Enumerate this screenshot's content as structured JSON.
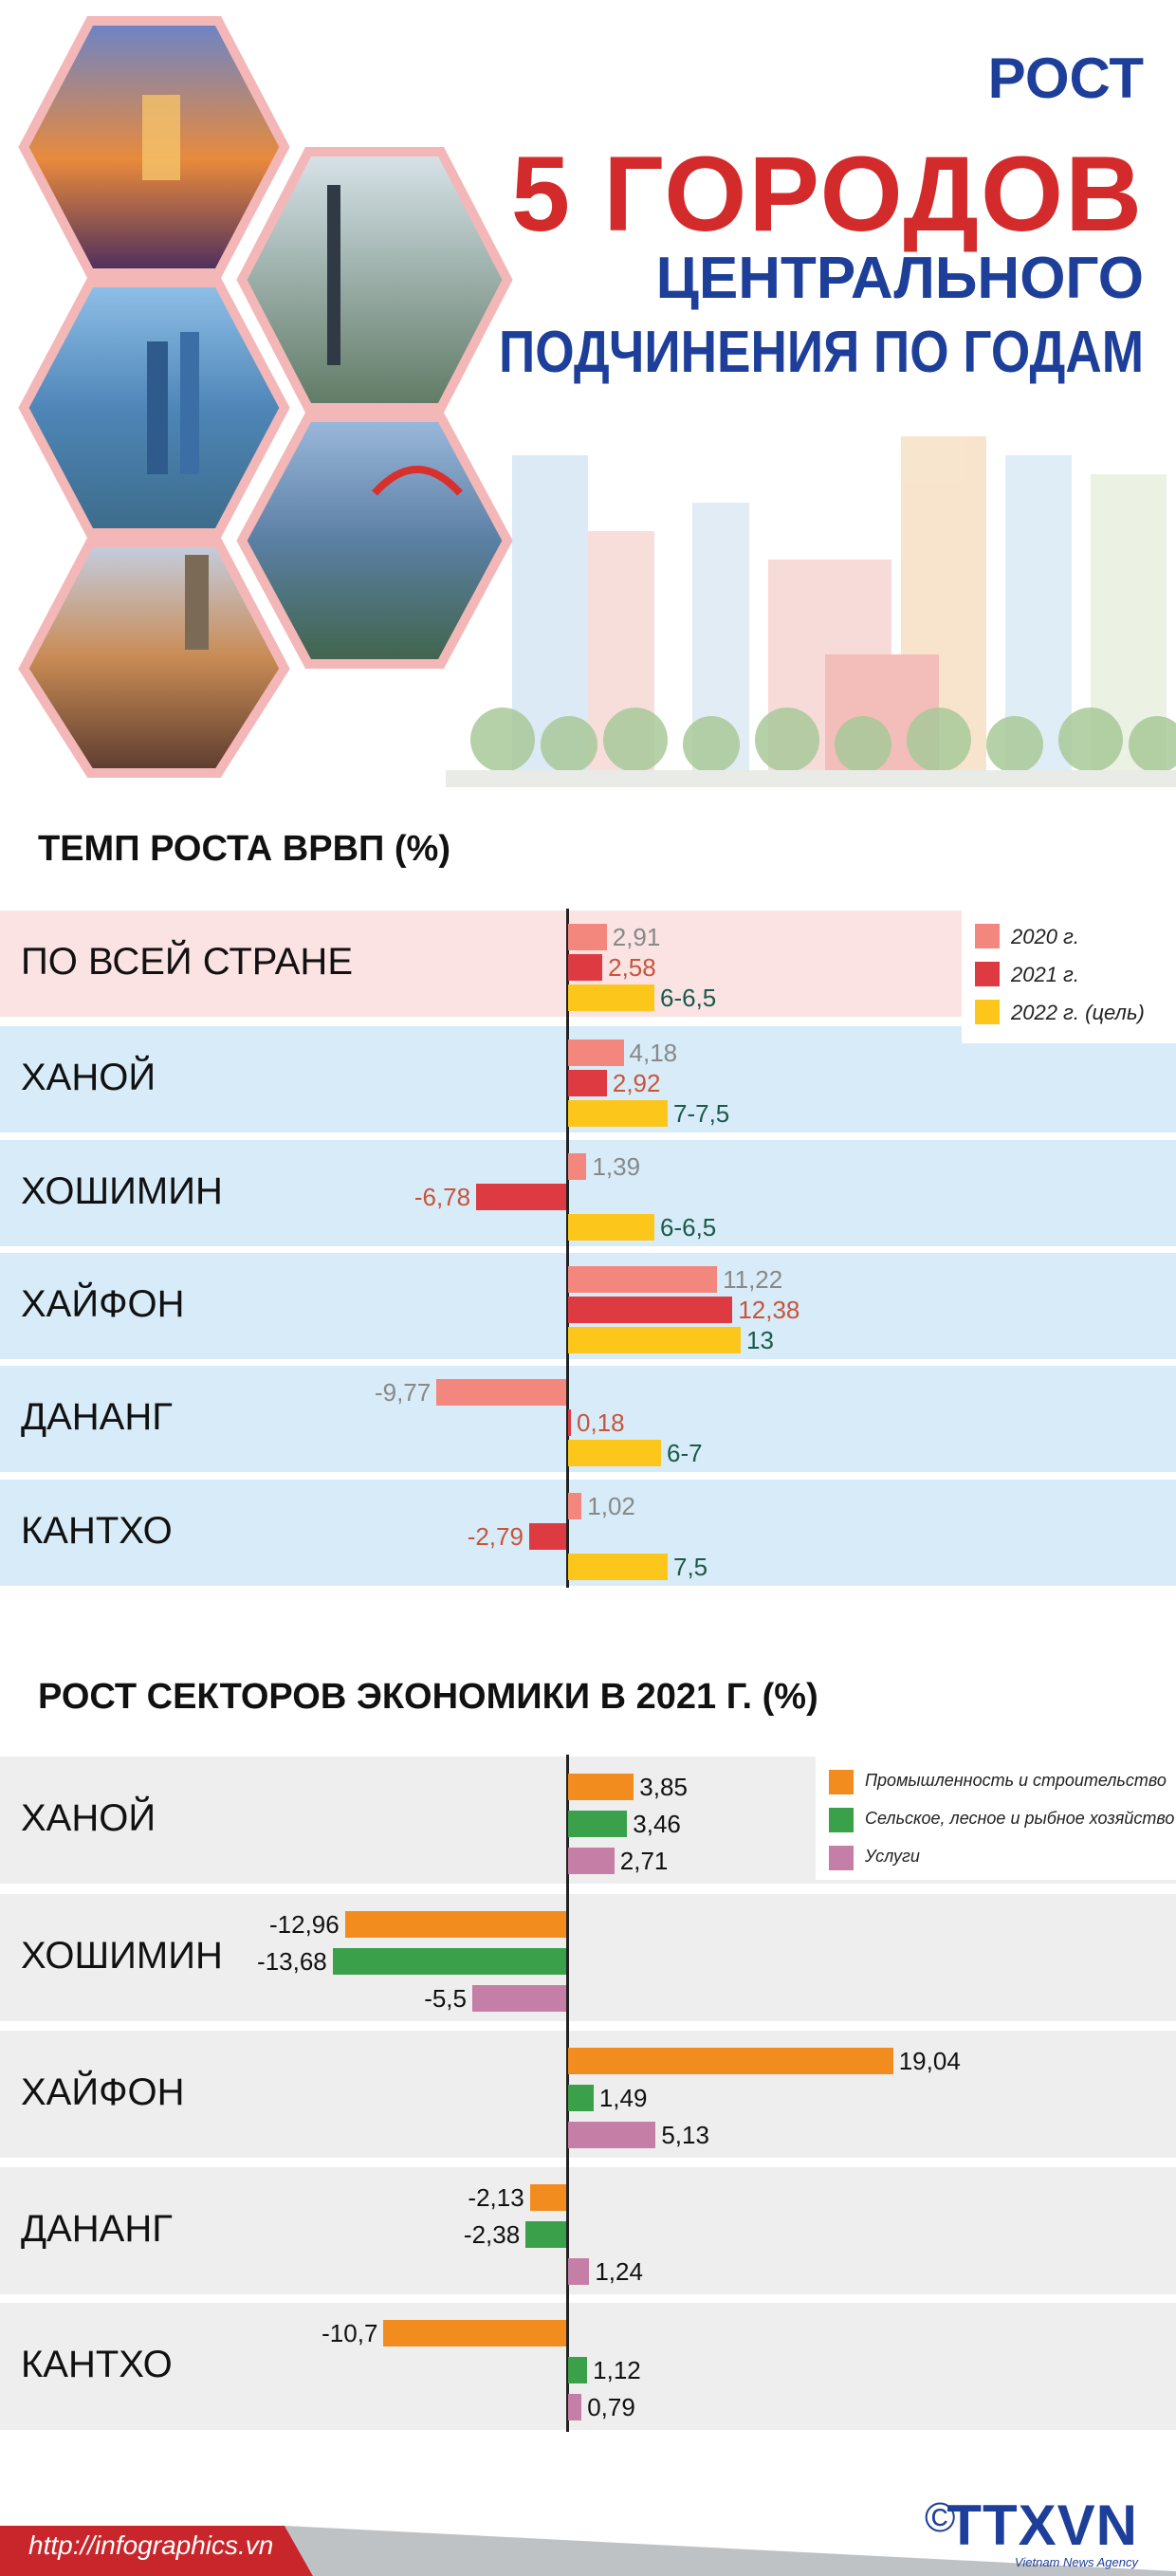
{
  "header": {
    "title_line1": "РОСТ",
    "title_line2": "5 ГОРОДОВ",
    "title_line3": "ЦЕНТРАЛЬНОГО",
    "title_line4": "ПОДЧИНЕНИЯ ПО ГОДАМ"
  },
  "colors": {
    "blue": "#1d3f9a",
    "red": "#d32b2b",
    "band_pink": "#fbe3e3",
    "band_blue": "#d7ecf8",
    "band_gray": "#efeeee",
    "bar_2020": "#f4877d",
    "bar_2021": "#dd3a42",
    "bar_2022": "#fcc71a",
    "bar_industry": "#f28c1e",
    "bar_agri": "#3aa04a",
    "bar_services": "#c57ea5"
  },
  "chart_data": [
    {
      "type": "bar",
      "title": "ТЕМП РОСТА ВРВП (%)",
      "categories": [
        "ПО ВСЕЙ СТРАНЕ",
        "ХАНОЙ",
        "ХОШИМИН",
        "ХАЙФОН",
        "ДАНАНГ",
        "КАНТХО"
      ],
      "series": [
        {
          "name": "2020 г.",
          "values": [
            2.91,
            4.18,
            1.39,
            11.22,
            -9.77,
            1.02
          ],
          "labels": [
            "2,91",
            "4,18",
            "1,39",
            "11,22",
            "-9,77",
            "1,02"
          ]
        },
        {
          "name": "2021 г.",
          "values": [
            2.58,
            2.92,
            -6.78,
            12.38,
            0.18,
            -2.79
          ],
          "labels": [
            "2,58",
            "2,92",
            "-6,78",
            "12,38",
            "0,18",
            "-2,79"
          ]
        },
        {
          "name": "2022 г. (цель)",
          "values": [
            6.5,
            7.5,
            6.5,
            13,
            7,
            7.5
          ],
          "labels": [
            "6-6,5",
            "7-7,5",
            "6-6,5",
            "13",
            "6-7",
            "7,5"
          ]
        }
      ],
      "legend_position": "top-right"
    },
    {
      "type": "bar",
      "title": "РОСТ СЕКТОРОВ ЭКОНОМИКИ В 2021 Г. (%)",
      "categories": [
        "ХАНОЙ",
        "ХОШИМИН",
        "ХАЙФОН",
        "ДАНАНГ",
        "КАНТХО"
      ],
      "series": [
        {
          "name": "Промышленность и строительство",
          "values": [
            3.85,
            -12.96,
            19.04,
            -2.13,
            -10.7
          ],
          "labels": [
            "3,85",
            "-12,96",
            "19,04",
            "-2,13",
            "-10,7"
          ]
        },
        {
          "name": "Сельское, лесное и рыбное хозяйство",
          "values": [
            3.46,
            -13.68,
            1.49,
            -2.38,
            1.12
          ],
          "labels": [
            "3,46",
            "-13,68",
            "1,49",
            "-2,38",
            "1,12"
          ]
        },
        {
          "name": "Услуги",
          "values": [
            2.71,
            -5.5,
            5.13,
            1.24,
            0.79
          ],
          "labels": [
            "2,71",
            "-5,5",
            "5,13",
            "1,24",
            "0,79"
          ]
        }
      ],
      "legend_position": "top-right"
    }
  ],
  "footer": {
    "url": "http://infographics.vn",
    "copyright": "©",
    "logo": "TTXVN",
    "agency": "Vietnam News Agency"
  }
}
